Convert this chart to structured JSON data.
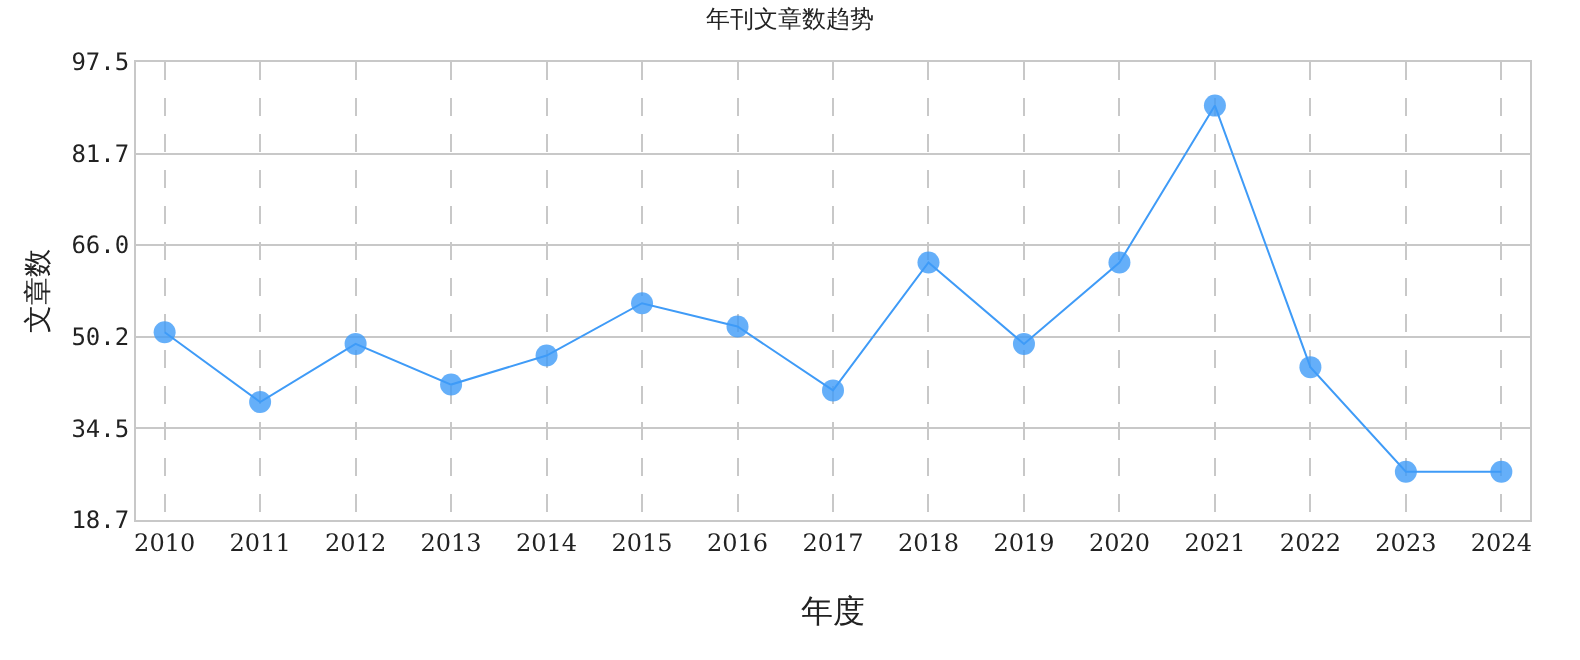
{
  "chart_data": {
    "type": "line",
    "title": "年刊文章数趋势",
    "xlabel": "年度",
    "ylabel": "文章数",
    "categories": [
      "2010",
      "2011",
      "2012",
      "2013",
      "2014",
      "2015",
      "2016",
      "2017",
      "2018",
      "2019",
      "2020",
      "2021",
      "2022",
      "2023",
      "2024"
    ],
    "series": [
      {
        "color": "#3f9bf7",
        "values": [
          51,
          39,
          49,
          42,
          47,
          56,
          52,
          41,
          63,
          49,
          63,
          90,
          45,
          27,
          27
        ]
      }
    ],
    "ylim": [
      18.7,
      97.5
    ],
    "yticks": [
      {
        "value": 18.7,
        "label": "18.7"
      },
      {
        "value": 34.5,
        "label": "34.5"
      },
      {
        "value": 50.2,
        "label": "50.2"
      },
      {
        "value": 66.0,
        "label": "66.0"
      },
      {
        "value": 81.7,
        "label": "81.7"
      },
      {
        "value": 97.5,
        "label": "97.5"
      }
    ],
    "grid": true,
    "marker": "circle",
    "line_style": "solid"
  }
}
